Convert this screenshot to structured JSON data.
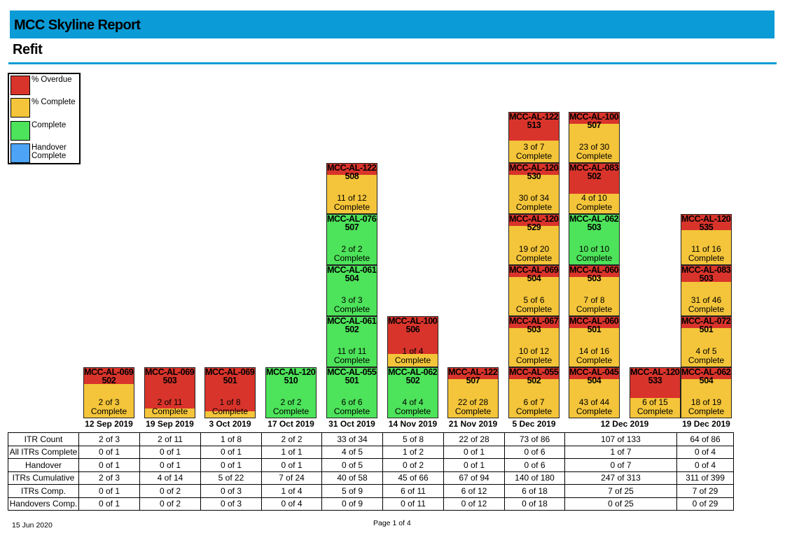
{
  "report": {
    "title": "MCC Skyline Report",
    "subtitle": "Refit",
    "date": "15 Jun 2020",
    "page": "Page 1 of 4"
  },
  "colors": {
    "overdue": "#d9342b",
    "partial": "#f4c53a",
    "complete": "#4de35a",
    "handover": "#4da3f5",
    "header": "#0b9bd6"
  },
  "legend": [
    {
      "label": "% Overdue",
      "status": "overdue"
    },
    {
      "label": "% Complete",
      "status": "partial"
    },
    {
      "label": "Complete",
      "status": "complete"
    },
    {
      "label": "Handover Complete",
      "status": "handover"
    }
  ],
  "weeks": [
    {
      "date": "12 Sep 2019",
      "span": 1,
      "columns": [
        [
          {
            "id": "MCC-AL-069-502",
            "text": "2 of 3\nComplete",
            "overdue_pct": 0.33,
            "complete": false
          }
        ]
      ]
    },
    {
      "date": "19 Sep 2019",
      "span": 1,
      "columns": [
        [
          {
            "id": "MCC-AL-069-503",
            "text": "2 of 11\nComplete",
            "overdue_pct": 0.82,
            "complete": false
          }
        ]
      ]
    },
    {
      "date": "3 Oct 2019",
      "span": 1,
      "columns": [
        [
          {
            "id": "MCC-AL-069-501",
            "text": "1 of 8\nComplete",
            "overdue_pct": 0.88,
            "complete": false
          }
        ]
      ]
    },
    {
      "date": "17 Oct 2019",
      "span": 1,
      "columns": [
        [
          {
            "id": "MCC-AL-120-510",
            "text": "2 of 2\nComplete",
            "overdue_pct": 0,
            "complete": true
          }
        ]
      ]
    },
    {
      "date": "31 Oct 2019",
      "span": 1,
      "columns": [
        [
          {
            "id": "MCC-AL-055-501",
            "text": "6 of 6\nComplete",
            "overdue_pct": 0,
            "complete": true
          },
          {
            "id": "MCC-AL-061-502",
            "text": "11 of 11\nComplete",
            "overdue_pct": 0,
            "complete": true
          },
          {
            "id": "MCC-AL-061-504",
            "text": "3 of 3\nComplete",
            "overdue_pct": 0,
            "complete": true
          },
          {
            "id": "MCC-AL-076-507",
            "text": "2 of 2\nComplete",
            "overdue_pct": 0,
            "complete": true
          },
          {
            "id": "MCC-AL-122-508",
            "text": "11 of 12\nComplete",
            "overdue_pct": 0.08,
            "complete": false
          }
        ]
      ]
    },
    {
      "date": "14 Nov 2019",
      "span": 1,
      "columns": [
        [
          {
            "id": "MCC-AL-062-502",
            "text": "4 of 4\nComplete",
            "overdue_pct": 0,
            "complete": true
          },
          {
            "id": "MCC-AL-100-506",
            "text": "1 of 4\nComplete",
            "overdue_pct": 0.75,
            "complete": false
          }
        ]
      ]
    },
    {
      "date": "21 Nov 2019",
      "span": 1,
      "columns": [
        [
          {
            "id": "MCC-AL-122-507",
            "text": "22 of 28\nComplete",
            "overdue_pct": 0.21,
            "complete": false
          }
        ]
      ]
    },
    {
      "date": "5 Dec 2019",
      "span": 1,
      "columns": [
        [
          {
            "id": "MCC-AL-055-502",
            "text": "6 of 7\nComplete",
            "overdue_pct": 0.14,
            "complete": false
          },
          {
            "id": "MCC-AL-067-503",
            "text": "10 of 12\nComplete",
            "overdue_pct": 0.17,
            "complete": false
          },
          {
            "id": "MCC-AL-069-504",
            "text": "5 of 6\nComplete",
            "overdue_pct": 0.17,
            "complete": false
          },
          {
            "id": "MCC-AL-120-529",
            "text": "19 of 20\nComplete",
            "overdue_pct": 0.05,
            "complete": false
          },
          {
            "id": "MCC-AL-120-530",
            "text": "30 of 34\nComplete",
            "overdue_pct": 0.12,
            "complete": false
          },
          {
            "id": "MCC-AL-122-513",
            "text": "3 of 7\nComplete",
            "overdue_pct": 0.57,
            "complete": false
          }
        ]
      ]
    },
    {
      "date": "12 Dec 2019",
      "span": 2,
      "columns": [
        [
          {
            "id": "MCC-AL-045-504",
            "text": "43 of 44\nComplete",
            "overdue_pct": 0.02,
            "complete": false
          },
          {
            "id": "MCC-AL-060-501",
            "text": "14 of 16\nComplete",
            "overdue_pct": 0.12,
            "complete": false
          },
          {
            "id": "MCC-AL-060-503",
            "text": "7 of 8\nComplete",
            "overdue_pct": 0.12,
            "complete": false
          },
          {
            "id": "MCC-AL-062-503",
            "text": "10 of 10\nComplete",
            "overdue_pct": 0,
            "complete": true
          },
          {
            "id": "MCC-AL-083-502",
            "text": "4 of 10\nComplete",
            "overdue_pct": 0.6,
            "complete": false
          },
          {
            "id": "MCC-AL-100-507",
            "text": "23 of 30\nComplete",
            "overdue_pct": 0.23,
            "complete": false
          }
        ],
        [
          {
            "id": "MCC-AL-120-533",
            "text": "6 of 15\nComplete",
            "overdue_pct": 0.6,
            "complete": false
          }
        ]
      ]
    },
    {
      "date": "19 Dec 2019",
      "span": 1,
      "columns": [
        [
          {
            "id": "MCC-AL-062-504",
            "text": "18 of 19\nComplete",
            "overdue_pct": 0.05,
            "complete": false
          },
          {
            "id": "MCC-AL-072-501",
            "text": "4 of 5\nComplete",
            "overdue_pct": 0.2,
            "complete": false
          },
          {
            "id": "MCC-AL-083-503",
            "text": "31 of 46\nComplete",
            "overdue_pct": 0.33,
            "complete": false
          },
          {
            "id": "MCC-AL-120-535",
            "text": "11 of 16\nComplete",
            "overdue_pct": 0.31,
            "complete": false
          }
        ]
      ]
    }
  ],
  "summary": {
    "rows": [
      {
        "label": "ITR Count",
        "values": [
          "2 of 3",
          "2 of 11",
          "1 of 8",
          "2 of 2",
          "33 of 34",
          "5 of 8",
          "22 of 28",
          "73 of 86",
          "107 of 133",
          "64 of 86"
        ]
      },
      {
        "label": "All ITRs Complete",
        "values": [
          "0 of 1",
          "0 of 1",
          "0 of 1",
          "1 of 1",
          "4 of 5",
          "1 of 2",
          "0 of 1",
          "0 of 6",
          "1 of 7",
          "0 of 4"
        ]
      },
      {
        "label": "Handover",
        "values": [
          "0 of 1",
          "0 of 1",
          "0 of 1",
          "0 of 1",
          "0 of 5",
          "0 of 2",
          "0 of 1",
          "0 of 6",
          "0 of 7",
          "0 of 4"
        ]
      },
      {
        "label": "ITRs Cumulative",
        "values": [
          "2 of 3",
          "4 of 14",
          "5 of 22",
          "7 of 24",
          "40 of 58",
          "45 of 66",
          "67 of 94",
          "140 of 180",
          "247 of 313",
          "311 of 399"
        ]
      },
      {
        "label": "ITRs Comp.",
        "values": [
          "0 of 1",
          "0 of 2",
          "0 of 3",
          "1 of 4",
          "5 of 9",
          "6 of 11",
          "6 of 12",
          "6 of 18",
          "7 of 25",
          "7 of 29"
        ]
      },
      {
        "label": "Handovers Comp.",
        "values": [
          "0 of 1",
          "0 of 2",
          "0 of 3",
          "0 of 4",
          "0 of 9",
          "0 of 11",
          "0 of 12",
          "0 of 18",
          "0 of 25",
          "0 of 29"
        ]
      }
    ]
  }
}
